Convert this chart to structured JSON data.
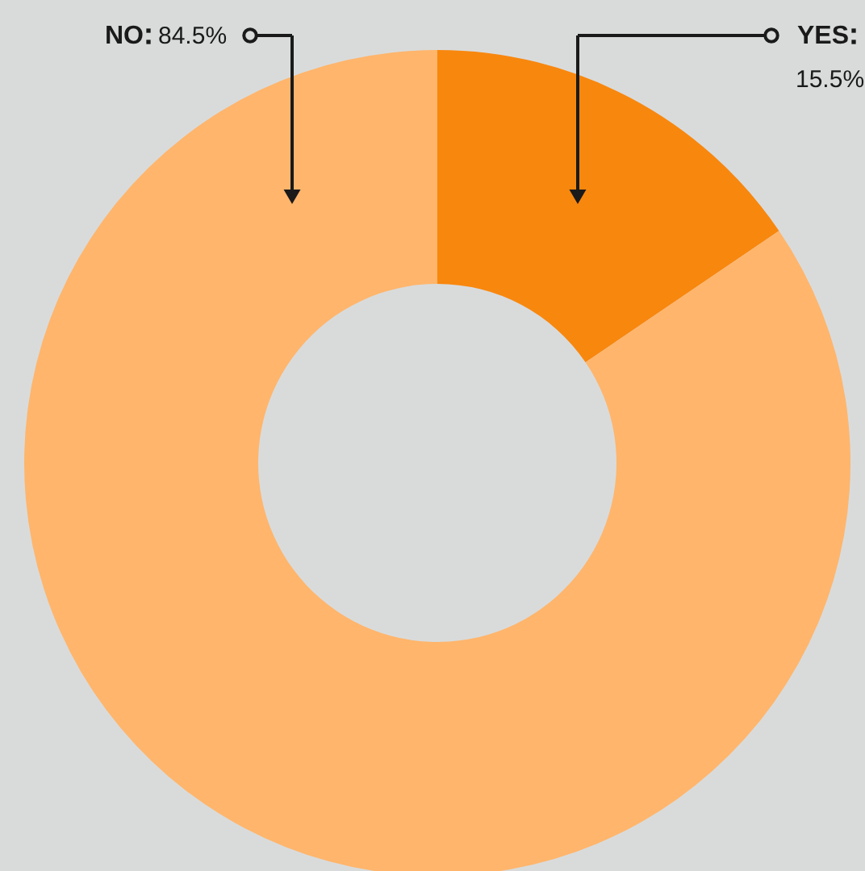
{
  "chart_data": {
    "type": "donut",
    "categories": [
      "YES",
      "NO"
    ],
    "values": [
      15.5,
      84.5
    ],
    "colors": [
      "#f8870e",
      "#ffb56b"
    ],
    "value_labels": [
      "15.5%",
      "84.5%"
    ]
  }
}
